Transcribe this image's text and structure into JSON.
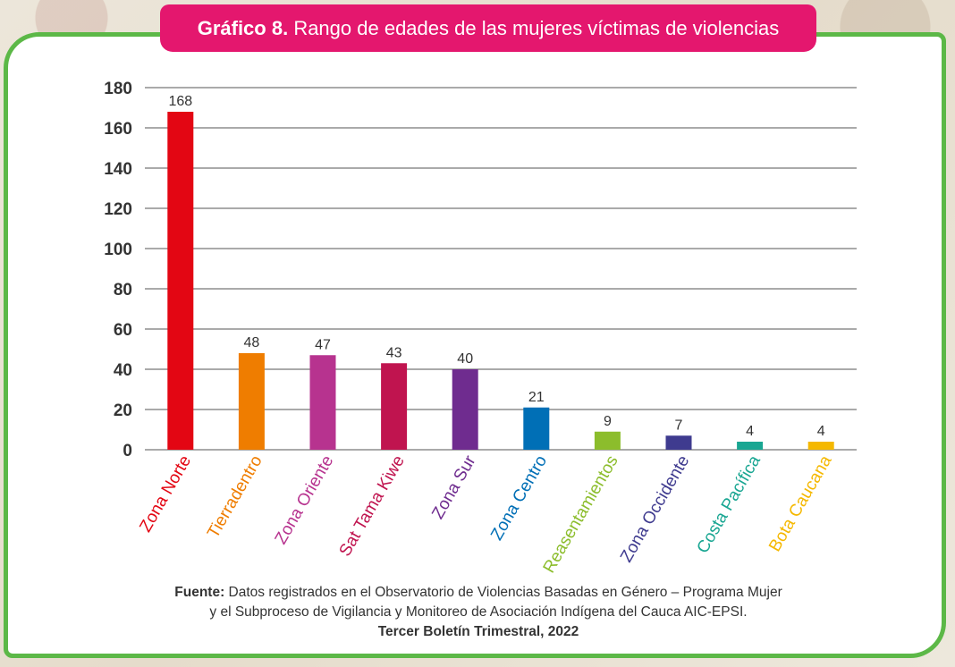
{
  "title": {
    "bold": "Gráfico 8.",
    "text": "Rango de edades de las mujeres víctimas de violencias"
  },
  "chart_data": {
    "type": "bar",
    "categories": [
      "Zona Norte",
      "Tierradentro",
      "Zona Oriente",
      "Sat Tama Kiwe",
      "Zona Sur",
      "Zona Centro",
      "Reasentamientos",
      "Zona Occidente",
      "Costa Pacífica",
      "Bota Caucana"
    ],
    "values": [
      168,
      48,
      47,
      43,
      40,
      21,
      9,
      7,
      4,
      4
    ],
    "colors": [
      "#e30613",
      "#ef7d00",
      "#b7338f",
      "#c0144f",
      "#6f2c8f",
      "#006fb6",
      "#8cbd2c",
      "#3f3b8f",
      "#19a692",
      "#f5b800"
    ],
    "ylim": [
      0,
      180
    ],
    "yticks": [
      0,
      20,
      40,
      60,
      80,
      100,
      120,
      140,
      160,
      180
    ],
    "grid": true,
    "data_labels": true
  },
  "source": {
    "label": "Fuente:",
    "line1": "Datos registrados en el Observatorio de Violencias Basadas en Género – Programa Mujer",
    "line2": "y el Subproceso de Vigilancia y Monitoreo de Asociación Indígena del Cauca AIC-EPSI.",
    "line3": "Tercer Boletín Trimestral, 2022"
  }
}
